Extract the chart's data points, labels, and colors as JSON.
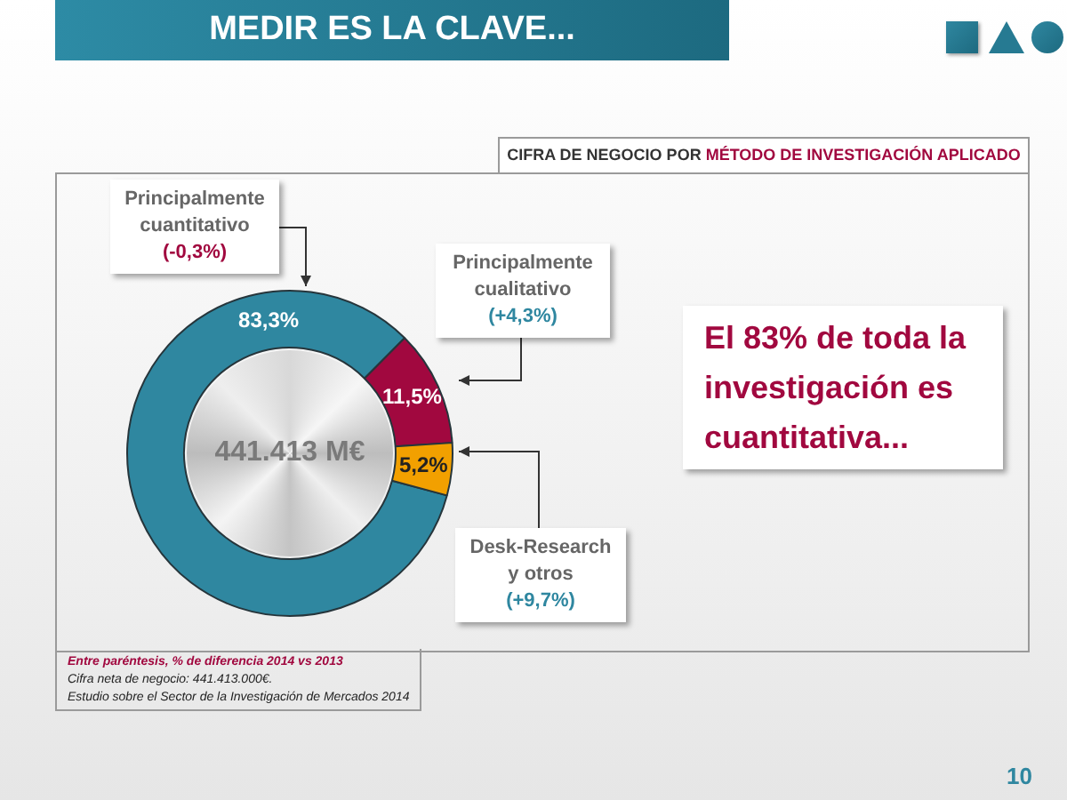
{
  "chart_data": {
    "type": "donut",
    "title": "MEDIR ES LA CLAVE...",
    "subtitle": "CIFRA DE NEGOCIO POR MÉTODO DE INVESTIGACIÓN APLICADO",
    "categories": [
      "Principalmente cuantitativo",
      "Principalmente cualitativo",
      "Desk-Research y otros"
    ],
    "values": [
      83.3,
      11.5,
      5.2
    ],
    "colors": [
      "#2f87a0",
      "#a1083f",
      "#f2a000"
    ],
    "value_labels": [
      "83,3%",
      "11,5%",
      "5,2%"
    ],
    "annotations": [
      "(-0,3%)",
      "(+4,3%)",
      "(+9,7%)",
      "441.413 M€",
      "El 83% de toda la investigación es cuantitativa...",
      "Entre paréntesis, % de diferencia 2014 vs 2013",
      "Cifra neta de negocio: 441.413.000€.",
      "Estudio sobre el Sector de la Investigación de Mercados 2014",
      "10"
    ]
  }
}
